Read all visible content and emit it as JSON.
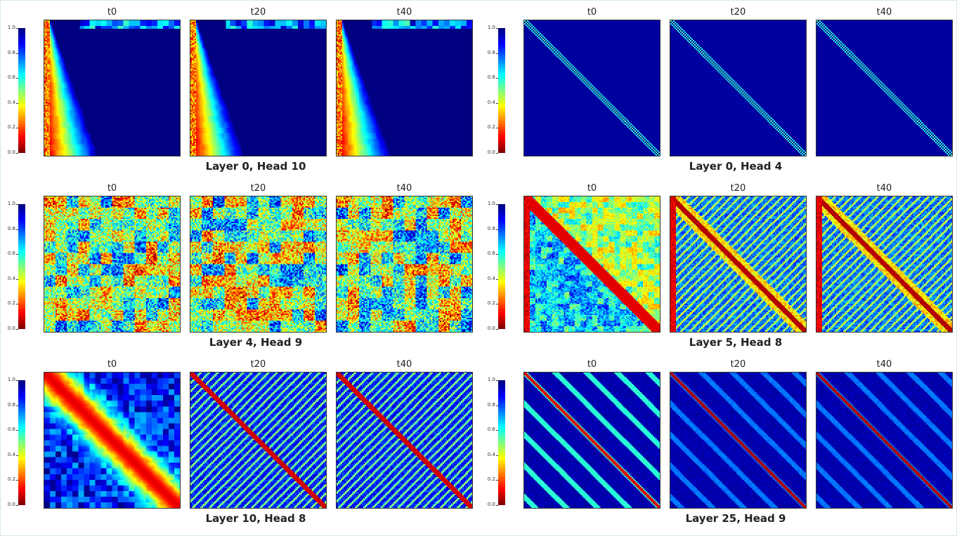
{
  "colormap": "jet",
  "colorbar": {
    "ticks": [
      "0.0",
      "0.2",
      "0.4",
      "0.6",
      "0.8",
      "1.0"
    ],
    "range": [
      0,
      1
    ]
  },
  "chart_data": [
    {
      "type": "heatmap",
      "title": "Layer 0, Head 10",
      "pattern": "first-column-sink",
      "panels": [
        {
          "title": "t0",
          "step": 0
        },
        {
          "title": "t20",
          "step": 20
        },
        {
          "title": "t40",
          "step": 40
        }
      ]
    },
    {
      "type": "heatmap",
      "title": "Layer 0, Head 4",
      "pattern": "thin-diagonal",
      "panels": [
        {
          "title": "t0",
          "step": 0
        },
        {
          "title": "t20",
          "step": 20
        },
        {
          "title": "t40",
          "step": 40
        }
      ]
    },
    {
      "type": "heatmap",
      "title": "Layer 4, Head 9",
      "pattern": "noisy-blocks",
      "panels": [
        {
          "title": "t0",
          "step": 0
        },
        {
          "title": "t20",
          "step": 20
        },
        {
          "title": "t40",
          "step": 40
        }
      ]
    },
    {
      "type": "heatmap",
      "title": "Layer 5, Head 8",
      "pattern": "striped-diagonal",
      "panels": [
        {
          "title": "t0",
          "step": 0
        },
        {
          "title": "t20",
          "step": 20
        },
        {
          "title": "t40",
          "step": 40
        }
      ]
    },
    {
      "type": "heatmap",
      "title": "Layer 10, Head 8",
      "pattern": "wide-diagonal",
      "panels": [
        {
          "title": "t0",
          "step": 0
        },
        {
          "title": "t20",
          "step": 20
        },
        {
          "title": "t40",
          "step": 40
        }
      ]
    },
    {
      "type": "heatmap",
      "title": "Layer 25, Head 9",
      "pattern": "banded-diagonals",
      "panels": [
        {
          "title": "t0",
          "step": 0
        },
        {
          "title": "t20",
          "step": 20
        },
        {
          "title": "t40",
          "step": 40
        }
      ]
    }
  ]
}
